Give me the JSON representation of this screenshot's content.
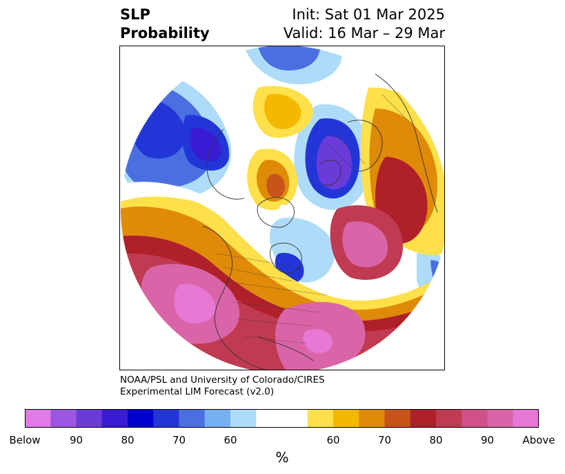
{
  "title": {
    "left_line1": "SLP",
    "left_line2": "Probability",
    "right_line1": "Init: Sat 01 Mar 2025",
    "right_line2": "Valid: 16 Mar – 29 Mar"
  },
  "credit": {
    "line1": "NOAA/PSL and University of Colorado/CIRES",
    "line2": "Experimental LIM Forecast (v2.0)"
  },
  "colorbar": {
    "unit_label": "%",
    "colors": [
      "#e07ae6",
      "#9b57e0",
      "#6b3bd9",
      "#3a1bd4",
      "#0000cf",
      "#2236d8",
      "#4a6fe0",
      "#76b0f0",
      "#aedcf8",
      "#ffffff",
      "#ffffff",
      "#fde04a",
      "#f4b800",
      "#e08a0a",
      "#c8541a",
      "#b0202a",
      "#c03a52",
      "#d0508a",
      "#d965a8",
      "#e878d6"
    ],
    "ticks": [
      "Below",
      "90",
      "80",
      "70",
      "60",
      "60",
      "70",
      "80",
      "90",
      "Above"
    ]
  },
  "map_colors": {
    "below_far": "#6b3bd9",
    "below_strong": "#0000cf",
    "below_mid": "#4a6fe0",
    "below_light": "#76b0f0",
    "below_pale": "#aedcf8",
    "neutral": "#ffffff",
    "above_pale": "#fde04a",
    "above_light": "#f4b800",
    "above_mid": "#e08a0a",
    "above_orange": "#c8541a",
    "above_red": "#b0202a",
    "above_crimson": "#c03a52",
    "above_pink": "#d965a8",
    "above_magenta": "#e878d6"
  }
}
